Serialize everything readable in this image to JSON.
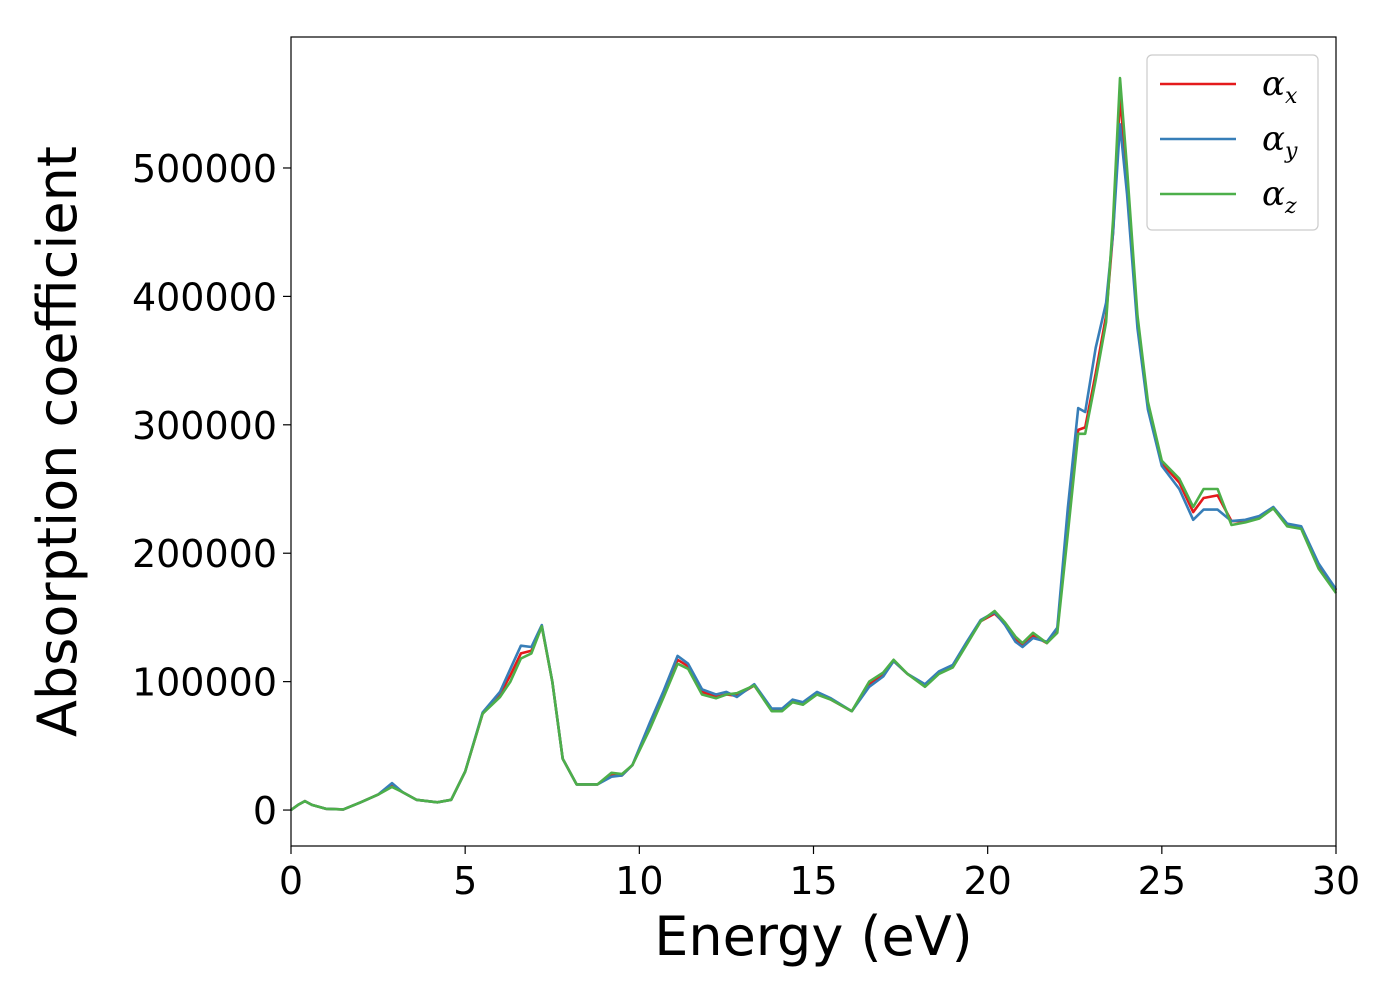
{
  "chart_data": {
    "type": "line",
    "title": "",
    "xlabel": "Energy (eV)",
    "ylabel": "Absorption coefficient",
    "xlim": [
      0,
      30
    ],
    "ylim": [
      -28000,
      602000
    ],
    "xticks": [
      0,
      5,
      10,
      15,
      20,
      25,
      30
    ],
    "xtick_labels": [
      "0",
      "5",
      "10",
      "15",
      "20",
      "25",
      "30"
    ],
    "yticks": [
      0,
      100000,
      200000,
      300000,
      400000,
      500000
    ],
    "ytick_labels": [
      "0",
      "100000",
      "200000",
      "300000",
      "400000",
      "500000"
    ],
    "grid": false,
    "legend_position": "top-right",
    "series": [
      {
        "name": "αx",
        "legend_symbol": "α",
        "legend_sub": "x",
        "color": "#e41a1c",
        "points": [
          [
            0,
            0
          ],
          [
            0.2,
            4000
          ],
          [
            0.4,
            7000
          ],
          [
            0.6,
            4000
          ],
          [
            1.0,
            1000
          ],
          [
            1.5,
            500
          ],
          [
            2.0,
            6000
          ],
          [
            2.5,
            12000
          ],
          [
            2.9,
            19000
          ],
          [
            3.2,
            14000
          ],
          [
            3.6,
            8000
          ],
          [
            4.2,
            6000
          ],
          [
            4.6,
            8000
          ],
          [
            5.0,
            30000
          ],
          [
            5.5,
            75000
          ],
          [
            6.0,
            90000
          ],
          [
            6.3,
            105000
          ],
          [
            6.6,
            122000
          ],
          [
            6.9,
            124000
          ],
          [
            7.2,
            143000
          ],
          [
            7.5,
            100000
          ],
          [
            7.8,
            40000
          ],
          [
            8.2,
            20000
          ],
          [
            8.8,
            20000
          ],
          [
            9.2,
            27000
          ],
          [
            9.5,
            27000
          ],
          [
            9.8,
            35000
          ],
          [
            10.3,
            65000
          ],
          [
            10.7,
            90000
          ],
          [
            11.1,
            117000
          ],
          [
            11.4,
            112000
          ],
          [
            11.8,
            92000
          ],
          [
            12.2,
            88000
          ],
          [
            12.5,
            90000
          ],
          [
            12.8,
            89000
          ],
          [
            13.3,
            97000
          ],
          [
            13.8,
            78000
          ],
          [
            14.1,
            78000
          ],
          [
            14.4,
            85000
          ],
          [
            14.7,
            83000
          ],
          [
            15.1,
            91000
          ],
          [
            15.5,
            86000
          ],
          [
            16.1,
            77000
          ],
          [
            16.6,
            98000
          ],
          [
            17.0,
            105000
          ],
          [
            17.3,
            116000
          ],
          [
            17.7,
            106000
          ],
          [
            18.2,
            97000
          ],
          [
            18.6,
            107000
          ],
          [
            19.0,
            112000
          ],
          [
            19.4,
            130000
          ],
          [
            19.8,
            147000
          ],
          [
            20.2,
            153000
          ],
          [
            20.5,
            145000
          ],
          [
            20.8,
            133000
          ],
          [
            21.0,
            128000
          ],
          [
            21.3,
            136000
          ],
          [
            21.7,
            130000
          ],
          [
            22.0,
            140000
          ],
          [
            22.3,
            220000
          ],
          [
            22.6,
            296000
          ],
          [
            22.8,
            298000
          ],
          [
            23.1,
            340000
          ],
          [
            23.4,
            385000
          ],
          [
            23.6,
            450000
          ],
          [
            23.8,
            556000
          ],
          [
            24.0,
            490000
          ],
          [
            24.3,
            380000
          ],
          [
            24.6,
            315000
          ],
          [
            25.0,
            270000
          ],
          [
            25.5,
            255000
          ],
          [
            25.9,
            232000
          ],
          [
            26.2,
            243000
          ],
          [
            26.6,
            245000
          ],
          [
            27.0,
            225000
          ],
          [
            27.4,
            225000
          ],
          [
            27.8,
            228000
          ],
          [
            28.2,
            235000
          ],
          [
            28.6,
            222000
          ],
          [
            29.0,
            220000
          ],
          [
            29.5,
            190000
          ],
          [
            30.0,
            171000
          ]
        ]
      },
      {
        "name": "αy",
        "legend_symbol": "α",
        "legend_sub": "y",
        "color": "#377eb8",
        "points": [
          [
            0,
            0
          ],
          [
            0.2,
            4000
          ],
          [
            0.4,
            7000
          ],
          [
            0.6,
            4000
          ],
          [
            1.0,
            1000
          ],
          [
            1.5,
            500
          ],
          [
            2.0,
            6000
          ],
          [
            2.5,
            12000
          ],
          [
            2.9,
            21000
          ],
          [
            3.2,
            14000
          ],
          [
            3.6,
            8000
          ],
          [
            4.2,
            6000
          ],
          [
            4.6,
            8000
          ],
          [
            5.0,
            30000
          ],
          [
            5.5,
            76000
          ],
          [
            6.0,
            92000
          ],
          [
            6.3,
            110000
          ],
          [
            6.6,
            128000
          ],
          [
            6.9,
            127000
          ],
          [
            7.2,
            144000
          ],
          [
            7.5,
            100000
          ],
          [
            7.8,
            40000
          ],
          [
            8.2,
            20000
          ],
          [
            8.8,
            20000
          ],
          [
            9.2,
            26000
          ],
          [
            9.5,
            27000
          ],
          [
            9.8,
            35000
          ],
          [
            10.3,
            68000
          ],
          [
            10.7,
            93000
          ],
          [
            11.1,
            120000
          ],
          [
            11.4,
            114000
          ],
          [
            11.8,
            94000
          ],
          [
            12.2,
            90000
          ],
          [
            12.5,
            92000
          ],
          [
            12.8,
            88000
          ],
          [
            13.3,
            98000
          ],
          [
            13.8,
            79000
          ],
          [
            14.1,
            79000
          ],
          [
            14.4,
            86000
          ],
          [
            14.7,
            84000
          ],
          [
            15.1,
            92000
          ],
          [
            15.5,
            87000
          ],
          [
            16.1,
            77000
          ],
          [
            16.6,
            96000
          ],
          [
            17.0,
            104000
          ],
          [
            17.3,
            116000
          ],
          [
            17.7,
            106000
          ],
          [
            18.2,
            98000
          ],
          [
            18.6,
            108000
          ],
          [
            19.0,
            113000
          ],
          [
            19.4,
            131000
          ],
          [
            19.8,
            148000
          ],
          [
            20.2,
            154000
          ],
          [
            20.5,
            144000
          ],
          [
            20.8,
            131000
          ],
          [
            21.0,
            127000
          ],
          [
            21.3,
            134000
          ],
          [
            21.7,
            131000
          ],
          [
            22.0,
            142000
          ],
          [
            22.3,
            235000
          ],
          [
            22.6,
            313000
          ],
          [
            22.8,
            310000
          ],
          [
            23.1,
            360000
          ],
          [
            23.4,
            395000
          ],
          [
            23.6,
            450000
          ],
          [
            23.8,
            534000
          ],
          [
            24.0,
            480000
          ],
          [
            24.3,
            375000
          ],
          [
            24.6,
            312000
          ],
          [
            25.0,
            268000
          ],
          [
            25.5,
            250000
          ],
          [
            25.9,
            226000
          ],
          [
            26.2,
            234000
          ],
          [
            26.6,
            234000
          ],
          [
            27.0,
            225000
          ],
          [
            27.4,
            226000
          ],
          [
            27.8,
            229000
          ],
          [
            28.2,
            236000
          ],
          [
            28.6,
            223000
          ],
          [
            29.0,
            221000
          ],
          [
            29.5,
            192000
          ],
          [
            30.0,
            172000
          ]
        ]
      },
      {
        "name": "αz",
        "legend_symbol": "α",
        "legend_sub": "z",
        "color": "#4daf4a",
        "points": [
          [
            0,
            0
          ],
          [
            0.2,
            4000
          ],
          [
            0.4,
            7000
          ],
          [
            0.6,
            4000
          ],
          [
            1.0,
            1000
          ],
          [
            1.5,
            500
          ],
          [
            2.0,
            6000
          ],
          [
            2.5,
            12000
          ],
          [
            2.9,
            18000
          ],
          [
            3.2,
            14000
          ],
          [
            3.6,
            8000
          ],
          [
            4.2,
            6000
          ],
          [
            4.6,
            8000
          ],
          [
            5.0,
            30000
          ],
          [
            5.5,
            75000
          ],
          [
            6.0,
            88000
          ],
          [
            6.3,
            100000
          ],
          [
            6.6,
            118000
          ],
          [
            6.9,
            122000
          ],
          [
            7.2,
            143000
          ],
          [
            7.5,
            100000
          ],
          [
            7.8,
            40000
          ],
          [
            8.2,
            20000
          ],
          [
            8.8,
            20000
          ],
          [
            9.2,
            29000
          ],
          [
            9.5,
            28000
          ],
          [
            9.8,
            35000
          ],
          [
            10.3,
            63000
          ],
          [
            10.7,
            88000
          ],
          [
            11.1,
            114000
          ],
          [
            11.4,
            110000
          ],
          [
            11.8,
            90000
          ],
          [
            12.2,
            87000
          ],
          [
            12.5,
            90000
          ],
          [
            12.8,
            91000
          ],
          [
            13.3,
            97000
          ],
          [
            13.8,
            77000
          ],
          [
            14.1,
            77000
          ],
          [
            14.4,
            84000
          ],
          [
            14.7,
            82000
          ],
          [
            15.1,
            90000
          ],
          [
            15.5,
            86000
          ],
          [
            16.1,
            77000
          ],
          [
            16.6,
            100000
          ],
          [
            17.0,
            107000
          ],
          [
            17.3,
            117000
          ],
          [
            17.7,
            106000
          ],
          [
            18.2,
            96000
          ],
          [
            18.6,
            106000
          ],
          [
            19.0,
            111000
          ],
          [
            19.4,
            129000
          ],
          [
            19.8,
            147000
          ],
          [
            20.2,
            155000
          ],
          [
            20.5,
            146000
          ],
          [
            20.8,
            135000
          ],
          [
            21.0,
            130000
          ],
          [
            21.3,
            138000
          ],
          [
            21.7,
            130000
          ],
          [
            22.0,
            138000
          ],
          [
            22.3,
            215000
          ],
          [
            22.6,
            293000
          ],
          [
            22.8,
            293000
          ],
          [
            23.1,
            335000
          ],
          [
            23.4,
            380000
          ],
          [
            23.6,
            460000
          ],
          [
            23.8,
            570000
          ],
          [
            24.0,
            500000
          ],
          [
            24.3,
            385000
          ],
          [
            24.6,
            318000
          ],
          [
            25.0,
            272000
          ],
          [
            25.5,
            258000
          ],
          [
            25.9,
            236000
          ],
          [
            26.2,
            250000
          ],
          [
            26.6,
            250000
          ],
          [
            27.0,
            222000
          ],
          [
            27.4,
            224000
          ],
          [
            27.8,
            227000
          ],
          [
            28.2,
            235000
          ],
          [
            28.6,
            221000
          ],
          [
            29.0,
            219000
          ],
          [
            29.5,
            188000
          ],
          [
            30.0,
            169000
          ]
        ]
      }
    ]
  }
}
